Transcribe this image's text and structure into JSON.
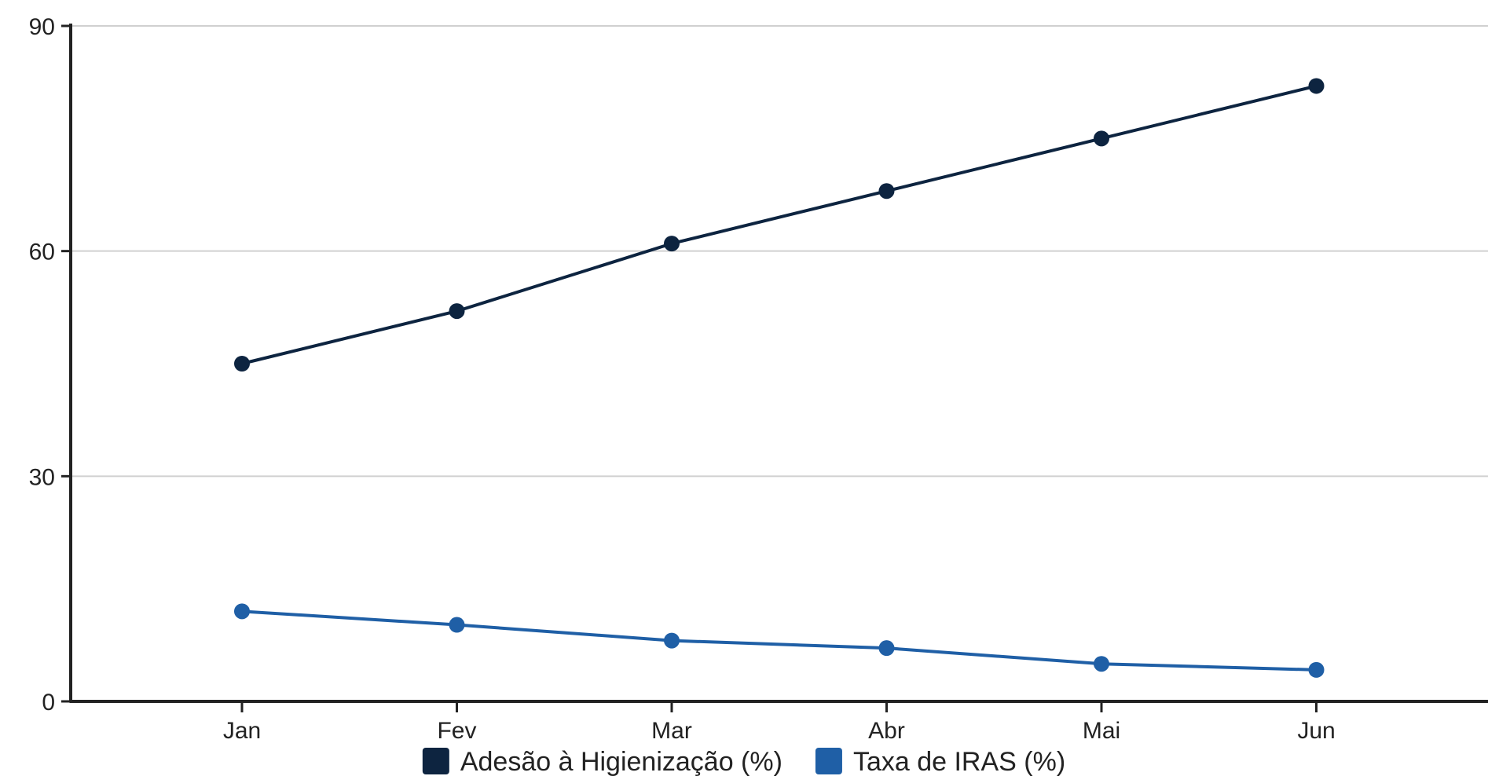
{
  "chart_data": {
    "type": "line",
    "categories": [
      "Jan",
      "Fev",
      "Mar",
      "Abr",
      "Mai",
      "Jun"
    ],
    "series": [
      {
        "name": "Adesão à Higienização (%)",
        "color": "#0d2440",
        "values": [
          45,
          52,
          61,
          68,
          75,
          82
        ]
      },
      {
        "name": "Taxa de IRAS (%)",
        "color": "#1f5fa6",
        "values": [
          12,
          10.2,
          8.1,
          7.1,
          5,
          4.2
        ]
      }
    ],
    "ylim": [
      0,
      90
    ],
    "yticks": [
      "0",
      "30",
      "60",
      "90"
    ],
    "grid": true,
    "legend": "bottom"
  }
}
